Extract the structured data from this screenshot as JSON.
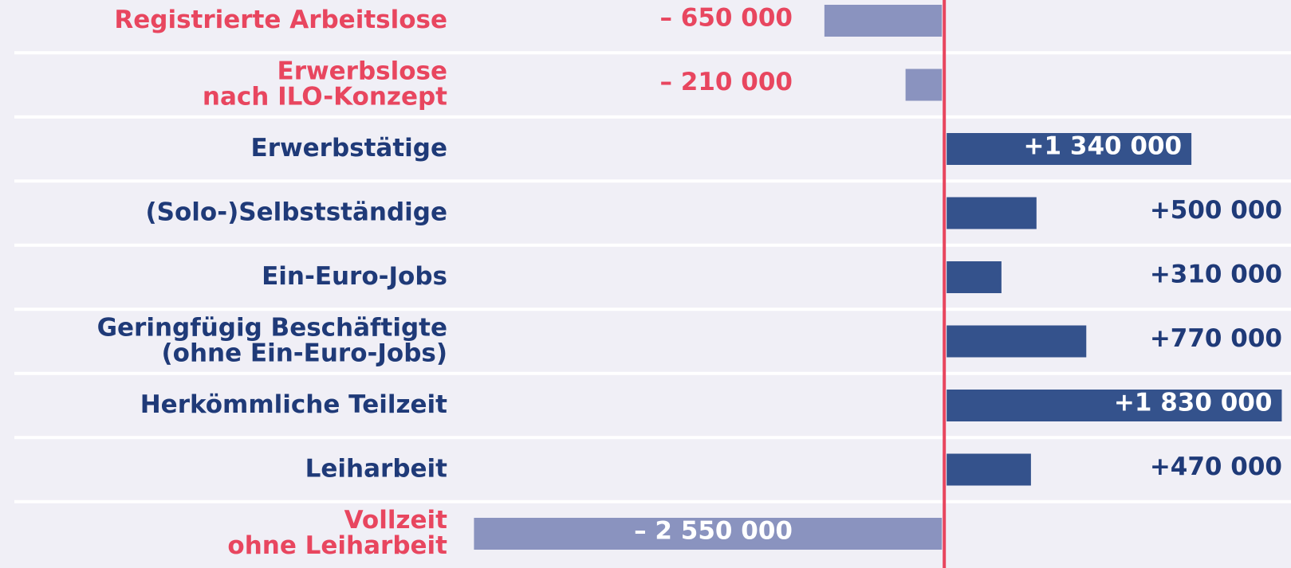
{
  "chart_data": {
    "type": "bar",
    "orientation": "horizontal",
    "categories": [
      [
        "Registrierte Arbeitslose"
      ],
      [
        "Erwerbslose",
        "nach ILO-Konzept"
      ],
      [
        "Erwerbstätige"
      ],
      [
        "(Solo-)Selbstständige"
      ],
      [
        "Ein-Euro-Jobs"
      ],
      [
        "Geringfügig Beschäftigte",
        "(ohne Ein-Euro-Jobs)"
      ],
      [
        "Herkömmliche Teilzeit"
      ],
      [
        "Leiharbeit"
      ],
      [
        "Vollzeit",
        "ohne Leiharbeit"
      ]
    ],
    "values": [
      -650000,
      -210000,
      1340000,
      500000,
      310000,
      770000,
      1830000,
      470000,
      -2550000
    ],
    "value_labels": [
      "– 650 000",
      "– 210 000",
      "+1 340 000",
      "+500 000",
      "+310 000",
      "+770 000",
      "+1 830 000",
      "+470 000",
      "– 2 550 000"
    ],
    "xlim": [
      -5120000,
      1880000
    ],
    "colors": {
      "negative": "#8a93bf",
      "positive": "#34528c"
    },
    "text_colors": {
      "negative": "#e8465f",
      "positive": "#1f3a78"
    },
    "zero_line_color": "#e8465f"
  }
}
